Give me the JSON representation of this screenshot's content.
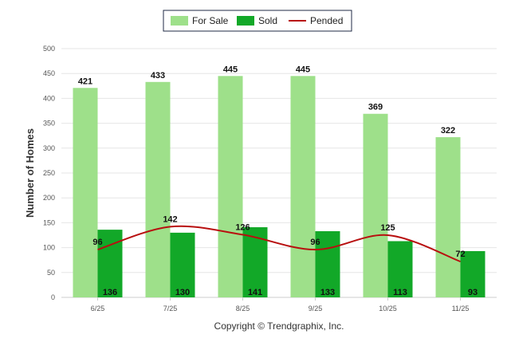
{
  "chart_data": {
    "type": "bar",
    "categories": [
      "6/25",
      "7/25",
      "8/25",
      "9/25",
      "10/25",
      "11/25"
    ],
    "series": [
      {
        "name": "For Sale",
        "type": "bar",
        "color": "#9ee08a",
        "values": [
          421,
          433,
          445,
          445,
          369,
          322
        ]
      },
      {
        "name": "Sold",
        "type": "bar",
        "color": "#12a828",
        "values": [
          136,
          130,
          141,
          133,
          113,
          93
        ]
      },
      {
        "name": "Pended",
        "type": "line",
        "color": "#b80f0f",
        "values": [
          96,
          142,
          126,
          96,
          125,
          72
        ]
      }
    ],
    "ylabel": "Number of Homes",
    "ylim": [
      0,
      500
    ],
    "yticks": [
      0,
      50,
      100,
      150,
      200,
      250,
      300,
      350,
      400,
      450,
      500
    ],
    "grid": true,
    "legend_position": "top-center"
  },
  "footer": {
    "credit": "Copyright © Trendgraphix, Inc."
  }
}
